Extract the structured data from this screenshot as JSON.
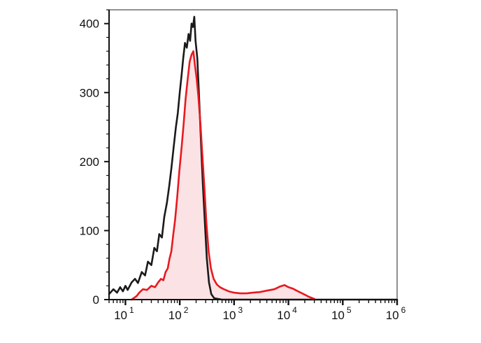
{
  "chart_data": {
    "type": "line",
    "title": "",
    "xlabel": "",
    "ylabel": "",
    "x_scale": "log",
    "xlim": [
      5,
      1000000
    ],
    "ylim": [
      0,
      420
    ],
    "grid": false,
    "legend": "none",
    "x_tick_labels": [
      {
        "value": 10,
        "base": "10",
        "exp": "1"
      },
      {
        "value": 100,
        "base": "10",
        "exp": "2"
      },
      {
        "value": 1000,
        "base": "10",
        "exp": "3"
      },
      {
        "value": 10000,
        "base": "10",
        "exp": "4"
      },
      {
        "value": 100000,
        "base": "10",
        "exp": "5"
      },
      {
        "value": 1000000,
        "base": "10",
        "exp": "6"
      }
    ],
    "y_tick_labels": [
      {
        "value": 0,
        "label": "0"
      },
      {
        "value": 100,
        "label": "100"
      },
      {
        "value": 200,
        "label": "200"
      },
      {
        "value": 300,
        "label": "300"
      },
      {
        "value": 400,
        "label": "400"
      }
    ],
    "series": [
      {
        "color": "#1a1a1a",
        "filled": false,
        "points": [
          [
            5,
            8
          ],
          [
            6,
            15
          ],
          [
            7,
            10
          ],
          [
            8,
            18
          ],
          [
            9,
            12
          ],
          [
            10,
            20
          ],
          [
            11,
            14
          ],
          [
            13,
            25
          ],
          [
            15,
            30
          ],
          [
            17,
            24
          ],
          [
            20,
            40
          ],
          [
            23,
            35
          ],
          [
            26,
            55
          ],
          [
            30,
            50
          ],
          [
            34,
            75
          ],
          [
            38,
            70
          ],
          [
            42,
            95
          ],
          [
            47,
            90
          ],
          [
            52,
            120
          ],
          [
            58,
            140
          ],
          [
            64,
            165
          ],
          [
            70,
            190
          ],
          [
            77,
            220
          ],
          [
            85,
            250
          ],
          [
            92,
            270
          ],
          [
            100,
            300
          ],
          [
            108,
            325
          ],
          [
            116,
            350
          ],
          [
            125,
            372
          ],
          [
            135,
            365
          ],
          [
            145,
            385
          ],
          [
            155,
            375
          ],
          [
            165,
            400
          ],
          [
            175,
            395
          ],
          [
            185,
            410
          ],
          [
            195,
            375
          ],
          [
            210,
            350
          ],
          [
            225,
            300
          ],
          [
            245,
            230
          ],
          [
            265,
            170
          ],
          [
            290,
            110
          ],
          [
            315,
            60
          ],
          [
            345,
            25
          ],
          [
            380,
            8
          ],
          [
            430,
            2
          ],
          [
            600,
            0
          ],
          [
            1000,
            0
          ],
          [
            1000000,
            0
          ]
        ]
      },
      {
        "color": "#e8191f",
        "filled": true,
        "fill": "#fbe3e5",
        "points": [
          [
            13,
            0
          ],
          [
            16,
            5
          ],
          [
            18,
            10
          ],
          [
            21,
            15
          ],
          [
            25,
            14
          ],
          [
            30,
            20
          ],
          [
            35,
            18
          ],
          [
            40,
            25
          ],
          [
            45,
            30
          ],
          [
            50,
            28
          ],
          [
            55,
            40
          ],
          [
            60,
            45
          ],
          [
            65,
            60
          ],
          [
            70,
            70
          ],
          [
            76,
            95
          ],
          [
            82,
            115
          ],
          [
            90,
            150
          ],
          [
            98,
            185
          ],
          [
            108,
            220
          ],
          [
            118,
            255
          ],
          [
            128,
            290
          ],
          [
            140,
            320
          ],
          [
            152,
            345
          ],
          [
            165,
            355
          ],
          [
            178,
            360
          ],
          [
            190,
            340
          ],
          [
            205,
            320
          ],
          [
            220,
            295
          ],
          [
            240,
            255
          ],
          [
            260,
            210
          ],
          [
            285,
            160
          ],
          [
            310,
            110
          ],
          [
            340,
            70
          ],
          [
            375,
            45
          ],
          [
            420,
            30
          ],
          [
            480,
            22
          ],
          [
            550,
            18
          ],
          [
            650,
            15
          ],
          [
            800,
            12
          ],
          [
            1000,
            10
          ],
          [
            1300,
            9
          ],
          [
            1700,
            9
          ],
          [
            2200,
            10
          ],
          [
            3000,
            11
          ],
          [
            4000,
            13
          ],
          [
            5500,
            15
          ],
          [
            7000,
            19
          ],
          [
            8500,
            21
          ],
          [
            10000,
            18
          ],
          [
            12000,
            16
          ],
          [
            15000,
            12
          ],
          [
            19000,
            8
          ],
          [
            24000,
            4
          ],
          [
            30000,
            1
          ]
        ]
      }
    ]
  }
}
